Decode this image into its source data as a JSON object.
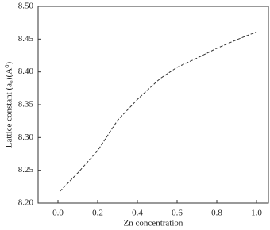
{
  "chart_data": {
    "type": "line",
    "x_label": "Zn concentration",
    "y_label": "Lattice constant (a₀)(A⁰)",
    "x": [
      0.01,
      0.1,
      0.2,
      0.3,
      0.4,
      0.5,
      0.52,
      0.6,
      0.7,
      0.8,
      0.9,
      1.0
    ],
    "series": [
      {
        "color": "#333333",
        "values": [
          8.218,
          8.246,
          8.28,
          8.326,
          8.358,
          8.386,
          8.391,
          8.407,
          8.421,
          8.436,
          8.449,
          8.461
        ]
      }
    ],
    "xlim": [
      -0.1,
      1.06
    ],
    "ylim": [
      8.2,
      8.5
    ],
    "xticks": [
      {
        "value": 0,
        "label": "0.0"
      },
      0.2,
      0.4,
      0.6,
      0.8,
      {
        "value": 1,
        "label": "1.0"
      }
    ],
    "yticks": [
      {
        "value": 8.2,
        "label": "8.20"
      },
      8.25,
      {
        "value": 8.3,
        "label": "8.30"
      },
      8.35,
      {
        "value": 8.4,
        "label": "8.40"
      },
      8.45,
      {
        "value": 8.5,
        "label": "8.50"
      }
    ],
    "dashed": true
  }
}
